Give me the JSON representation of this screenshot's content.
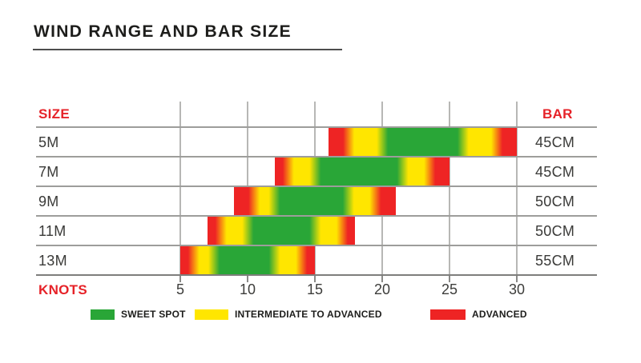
{
  "title": "WIND RANGE AND BAR SIZE",
  "headers": {
    "size": "SIZE",
    "bar": "BAR",
    "axis": "KNOTS"
  },
  "colors": {
    "sweet_spot": "#29a637",
    "intermediate": "#ffe600",
    "advanced": "#ee2424",
    "header_text": "#e62228"
  },
  "legend": [
    {
      "key": "sweet_spot",
      "label": "SWEET SPOT"
    },
    {
      "key": "intermediate",
      "label": "INTERMEDIATE TO ADVANCED"
    },
    {
      "key": "advanced",
      "label": "ADVANCED"
    }
  ],
  "chart_data": {
    "type": "bar",
    "orientation": "horizontal-range",
    "title": "WIND RANGE AND BAR SIZE",
    "xlabel": "KNOTS",
    "x_ticks": [
      5,
      10,
      15,
      20,
      25,
      30
    ],
    "xlim": [
      5,
      30
    ],
    "grid": true,
    "legend_position": "bottom",
    "zones": [
      "advanced",
      "intermediate",
      "sweet_spot",
      "intermediate",
      "advanced"
    ],
    "rows": [
      {
        "size": "5M",
        "bar_size": "45CM",
        "segments": [
          {
            "from": 16,
            "to": 17.5,
            "zone": "advanced"
          },
          {
            "from": 17.5,
            "to": 20,
            "zone": "intermediate"
          },
          {
            "from": 20,
            "to": 26,
            "zone": "sweet_spot"
          },
          {
            "from": 26,
            "to": 28.5,
            "zone": "intermediate"
          },
          {
            "from": 28.5,
            "to": 30,
            "zone": "advanced"
          }
        ]
      },
      {
        "size": "7M",
        "bar_size": "45CM",
        "segments": [
          {
            "from": 12,
            "to": 13,
            "zone": "advanced"
          },
          {
            "from": 13,
            "to": 15,
            "zone": "intermediate"
          },
          {
            "from": 15,
            "to": 21.5,
            "zone": "sweet_spot"
          },
          {
            "from": 21.5,
            "to": 23.5,
            "zone": "intermediate"
          },
          {
            "from": 23.5,
            "to": 25,
            "zone": "advanced"
          }
        ]
      },
      {
        "size": "9M",
        "bar_size": "50CM",
        "segments": [
          {
            "from": 9,
            "to": 10.5,
            "zone": "advanced"
          },
          {
            "from": 10.5,
            "to": 12,
            "zone": "intermediate"
          },
          {
            "from": 12,
            "to": 17.5,
            "zone": "sweet_spot"
          },
          {
            "from": 17.5,
            "to": 19.5,
            "zone": "intermediate"
          },
          {
            "from": 19.5,
            "to": 21,
            "zone": "advanced"
          }
        ]
      },
      {
        "size": "11M",
        "bar_size": "50CM",
        "segments": [
          {
            "from": 7,
            "to": 8,
            "zone": "advanced"
          },
          {
            "from": 8,
            "to": 10,
            "zone": "intermediate"
          },
          {
            "from": 10,
            "to": 15,
            "zone": "sweet_spot"
          },
          {
            "from": 15,
            "to": 17,
            "zone": "intermediate"
          },
          {
            "from": 17,
            "to": 18,
            "zone": "advanced"
          }
        ]
      },
      {
        "size": "13M",
        "bar_size": "55CM",
        "segments": [
          {
            "from": 5,
            "to": 6,
            "zone": "advanced"
          },
          {
            "from": 6,
            "to": 7.5,
            "zone": "intermediate"
          },
          {
            "from": 7.5,
            "to": 12,
            "zone": "sweet_spot"
          },
          {
            "from": 12,
            "to": 14,
            "zone": "intermediate"
          },
          {
            "from": 14,
            "to": 15,
            "zone": "advanced"
          }
        ]
      }
    ]
  }
}
